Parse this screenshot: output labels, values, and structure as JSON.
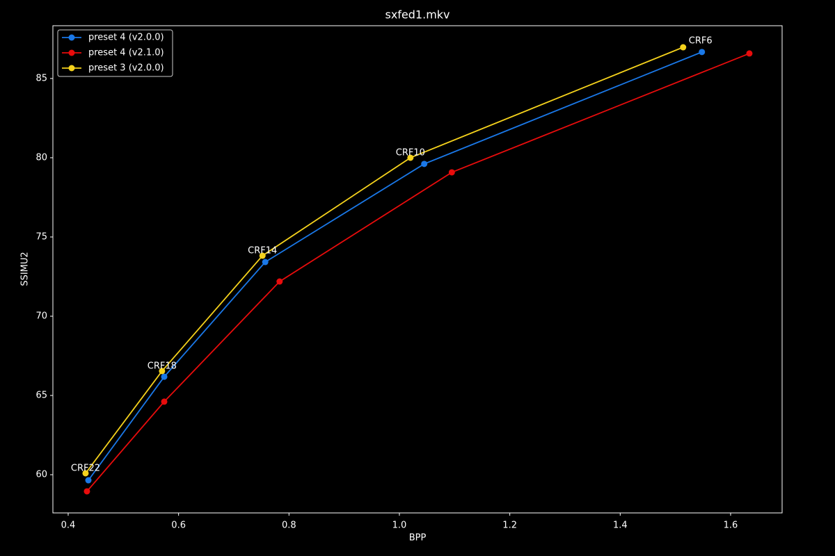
{
  "chart_data": {
    "type": "line",
    "title": "sxfed1.mkv",
    "x_label": "BPP",
    "y_label": "SSIMU2",
    "point_labels": [
      "CRF22",
      "CRF18",
      "CRF14",
      "CRF10",
      "CRF6"
    ],
    "series": [
      {
        "name": "preset 4 (v2.0.0)",
        "color": "#1a78e8",
        "x": [
          0.4366,
          0.574,
          0.757,
          1.045,
          1.548
        ],
        "values": [
          59.65,
          66.18,
          73.42,
          79.61,
          86.67
        ]
      },
      {
        "name": "preset 4 (v2.1.0)",
        "color": "#e80c0c",
        "x": [
          0.434,
          0.574,
          0.783,
          1.095,
          1.634
        ],
        "values": [
          58.95,
          64.61,
          72.19,
          79.08,
          86.58
        ]
      },
      {
        "name": "preset 3 (v2.0.0)",
        "color": "#f5d21c",
        "x": [
          0.4315,
          0.57,
          0.752,
          1.02,
          1.514
        ],
        "values": [
          60.09,
          66.54,
          73.82,
          80.0,
          86.97
        ]
      }
    ],
    "xlim": [
      0.3723,
      1.6933
    ],
    "ylim": [
      57.59,
      88.33
    ],
    "xticks": [
      0.4,
      0.6,
      0.8,
      {
        "value": 1,
        "label": "1.0"
      },
      1.2,
      1.4,
      1.6
    ],
    "yticks": [
      60,
      65,
      70,
      75,
      80,
      85
    ],
    "legend": "upper left",
    "grid": false
  }
}
